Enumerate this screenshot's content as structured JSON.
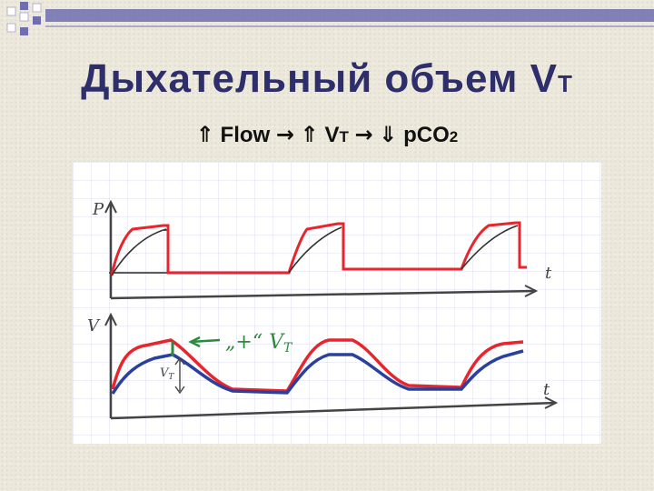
{
  "slide": {
    "title": "Дыхательный объем V",
    "title_subscript": "T",
    "formula": {
      "up_arrow": "⇑",
      "down_arrow": "⇓",
      "flow": "Flow",
      "right_arrow": "→",
      "vt_main": "V",
      "vt_sub": "T",
      "pco2_main": "pCO",
      "pco2_sub": "2"
    }
  },
  "diagram": {
    "top_axis_label": "P",
    "top_time_label": "t",
    "bottom_axis_label": "V",
    "bottom_time_label": "t",
    "annotation": "„+“ V",
    "annotation_subscript": "T",
    "vt_marker": "V",
    "vt_marker_subscript": "T",
    "colors": {
      "red": "#e8252c",
      "blue": "#2a3f9e",
      "pencil": "#444444",
      "green": "#2b8a3e",
      "grid": "#dcdcee",
      "title": "#2e2e6a"
    }
  }
}
